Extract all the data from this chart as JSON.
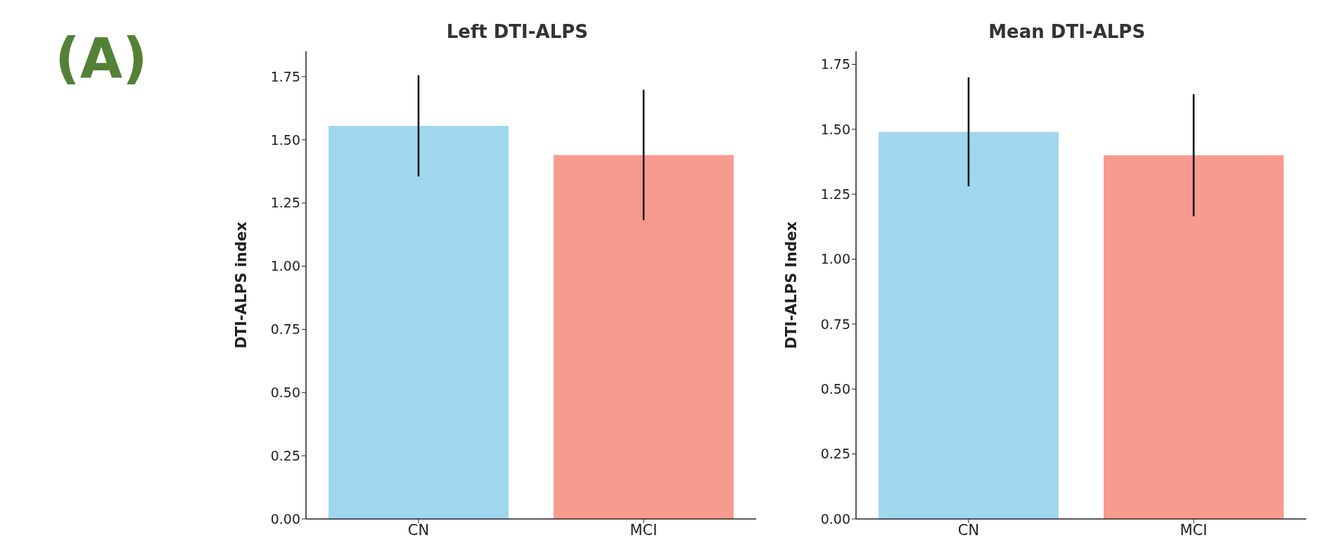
{
  "chart_data": [
    {
      "type": "bar",
      "title": "Left DTI-ALPS",
      "ylabel": "DTI-ALPS index",
      "categories": [
        "CN",
        "MCI"
      ],
      "values": [
        1.555,
        1.44
      ],
      "errors": [
        0.2,
        0.258
      ],
      "colors": [
        "#a0d7ee",
        "#f99a8e"
      ],
      "ylim": [
        0,
        1.85
      ],
      "yticks": [
        {
          "value": 0,
          "label": "0.00"
        },
        {
          "value": 0.25,
          "label": "0.25"
        },
        {
          "value": 0.5,
          "label": "0.50"
        },
        {
          "value": 0.75,
          "label": "0.75"
        },
        {
          "value": 1,
          "label": "1.00"
        },
        {
          "value": 1.25,
          "label": "1.25"
        },
        {
          "value": 1.5,
          "label": "1.50"
        },
        {
          "value": 1.75,
          "label": "1.75"
        }
      ],
      "annotations": [
        "(A)"
      ]
    },
    {
      "type": "bar",
      "title": "Mean DTI-ALPS",
      "ylabel": "DTI-ALPS Index",
      "categories": [
        "CN",
        "MCI"
      ],
      "values": [
        1.49,
        1.4
      ],
      "errors": [
        0.21,
        0.235
      ],
      "colors": [
        "#a0d7ee",
        "#f99a8e"
      ],
      "ylim": [
        0,
        1.8
      ],
      "yticks": [
        {
          "value": 0,
          "label": "0.00"
        },
        {
          "value": 0.25,
          "label": "0.25"
        },
        {
          "value": 0.5,
          "label": "0.50"
        },
        {
          "value": 0.75,
          "label": "0.75"
        },
        {
          "value": 1,
          "label": "1.00"
        },
        {
          "value": 1.25,
          "label": "1.25"
        },
        {
          "value": 1.5,
          "label": "1.50"
        },
        {
          "value": 1.75,
          "label": "1.75"
        }
      ]
    }
  ]
}
